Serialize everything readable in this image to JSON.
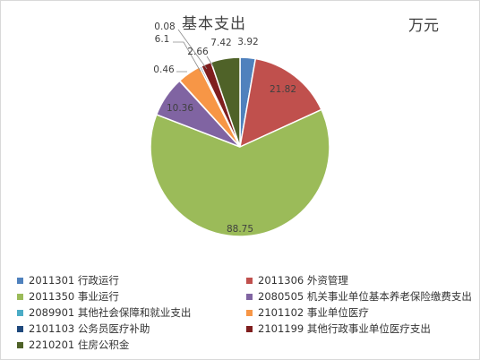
{
  "chart_data": {
    "type": "pie",
    "title": "基本支出",
    "unit": "万元",
    "slices": [
      {
        "code": "2011301",
        "name": "行政运行",
        "value": 3.92,
        "label": "3.92",
        "color": "#4f81bd"
      },
      {
        "code": "2011306",
        "name": "外资管理",
        "value": 21.82,
        "label": "21.82",
        "color": "#c0504d"
      },
      {
        "code": "2011350",
        "name": "事业运行",
        "value": 88.75,
        "label": "88.75",
        "color": "#9bbb59"
      },
      {
        "code": "2080505",
        "name": "机关事业单位基本养老保险缴费支出",
        "value": 10.36,
        "label": "10.36",
        "color": "#8064a2"
      },
      {
        "code": "2089901",
        "name": "其他社会保障和就业支出",
        "value": 0.08,
        "label": "0.08",
        "color": "#4bacc6"
      },
      {
        "code": "2101102",
        "name": "事业单位医疗",
        "value": 6.1,
        "label": "6.1",
        "color": "#f79646"
      },
      {
        "code": "2101103",
        "name": "公务员医疗补助",
        "value": 0.46,
        "label": "0.46",
        "color": "#1f497d"
      },
      {
        "code": "2101199",
        "name": "其他行政事业单位医疗支出",
        "value": 2.66,
        "label": "2.66",
        "color": "#7f1e1e"
      },
      {
        "code": "2210201",
        "name": "住房公积金",
        "value": 7.42,
        "label": "7.42",
        "color": "#4f6228"
      }
    ],
    "legend_position": "bottom"
  }
}
